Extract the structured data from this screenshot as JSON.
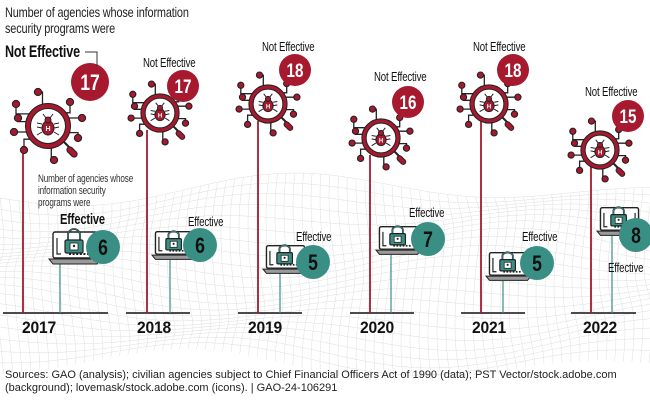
{
  "header": {
    "line1": "Number of agencies whose information",
    "line2": "security programs were",
    "emphasis": "Not Effective"
  },
  "effective_note": {
    "line1": "Number of agencies whose",
    "line2": "information security",
    "line3": "programs were",
    "emphasis": "Effective"
  },
  "labels": {
    "not_effective": "Not Effective",
    "effective": "Effective"
  },
  "years": [
    {
      "year": "2017",
      "not_effective": "17",
      "effective": "6"
    },
    {
      "year": "2018",
      "not_effective": "17",
      "effective": "6"
    },
    {
      "year": "2019",
      "not_effective": "18",
      "effective": "5"
    },
    {
      "year": "2020",
      "not_effective": "16",
      "effective": "7"
    },
    {
      "year": "2021",
      "not_effective": "18",
      "effective": "5"
    },
    {
      "year": "2022",
      "not_effective": "15",
      "effective": "8"
    }
  ],
  "colors": {
    "not_effective": "#a6192e",
    "effective": "#3a8f85",
    "icon_stroke": "#222222"
  },
  "icons": {
    "not_effective": "virus-bug-network-icon",
    "effective": "laptop-padlock-icon"
  },
  "source": "Sources: GAO (analysis); civilian agencies subject to Chief Financial Officers Act of 1990 (data); PST Vector/stock.adobe.com (background); lovemask/stock.adobe.com (icons).  |  GAO-24-106291"
}
